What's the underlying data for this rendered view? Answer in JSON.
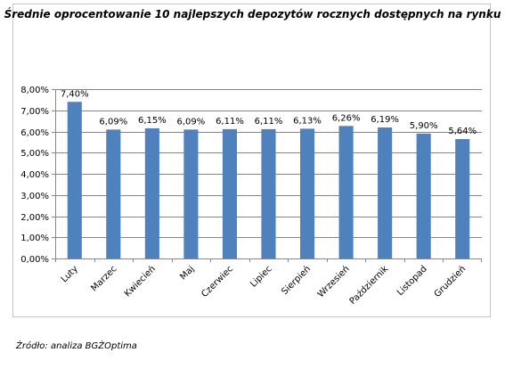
{
  "chart_data": {
    "type": "bar",
    "title": "Średnie oprocentowanie 10 najlepszych depozytów rocznych dostępnych na rynku",
    "categories": [
      "Luty",
      "Marzec",
      "Kwiecień",
      "Maj",
      "Czerwiec",
      "Lipiec",
      "Sierpień",
      "Wrzesień",
      "Październik",
      "Listopad",
      "Grudzień"
    ],
    "values": [
      7.4,
      6.09,
      6.15,
      6.09,
      6.11,
      6.11,
      6.13,
      6.26,
      6.19,
      5.9,
      5.64
    ],
    "value_labels": [
      "7,40%",
      "6,09%",
      "6,15%",
      "6,09%",
      "6,11%",
      "6,11%",
      "6,13%",
      "6,26%",
      "6,19%",
      "5,90%",
      "5,64%"
    ],
    "ylim": [
      0,
      8
    ],
    "ytick_values": [
      0,
      1,
      2,
      3,
      4,
      5,
      6,
      7,
      8
    ],
    "ytick_labels": [
      "0,00%",
      "1,00%",
      "2,00%",
      "3,00%",
      "4,00%",
      "5,00%",
      "6,00%",
      "7,00%",
      "8,00%"
    ],
    "xlabel": "",
    "ylabel": "",
    "grid": true,
    "legend": "none",
    "bar_color": "#4f81bd",
    "grid_color": "#878787"
  },
  "source_note": "Źródło: analiza BGŻOptima"
}
